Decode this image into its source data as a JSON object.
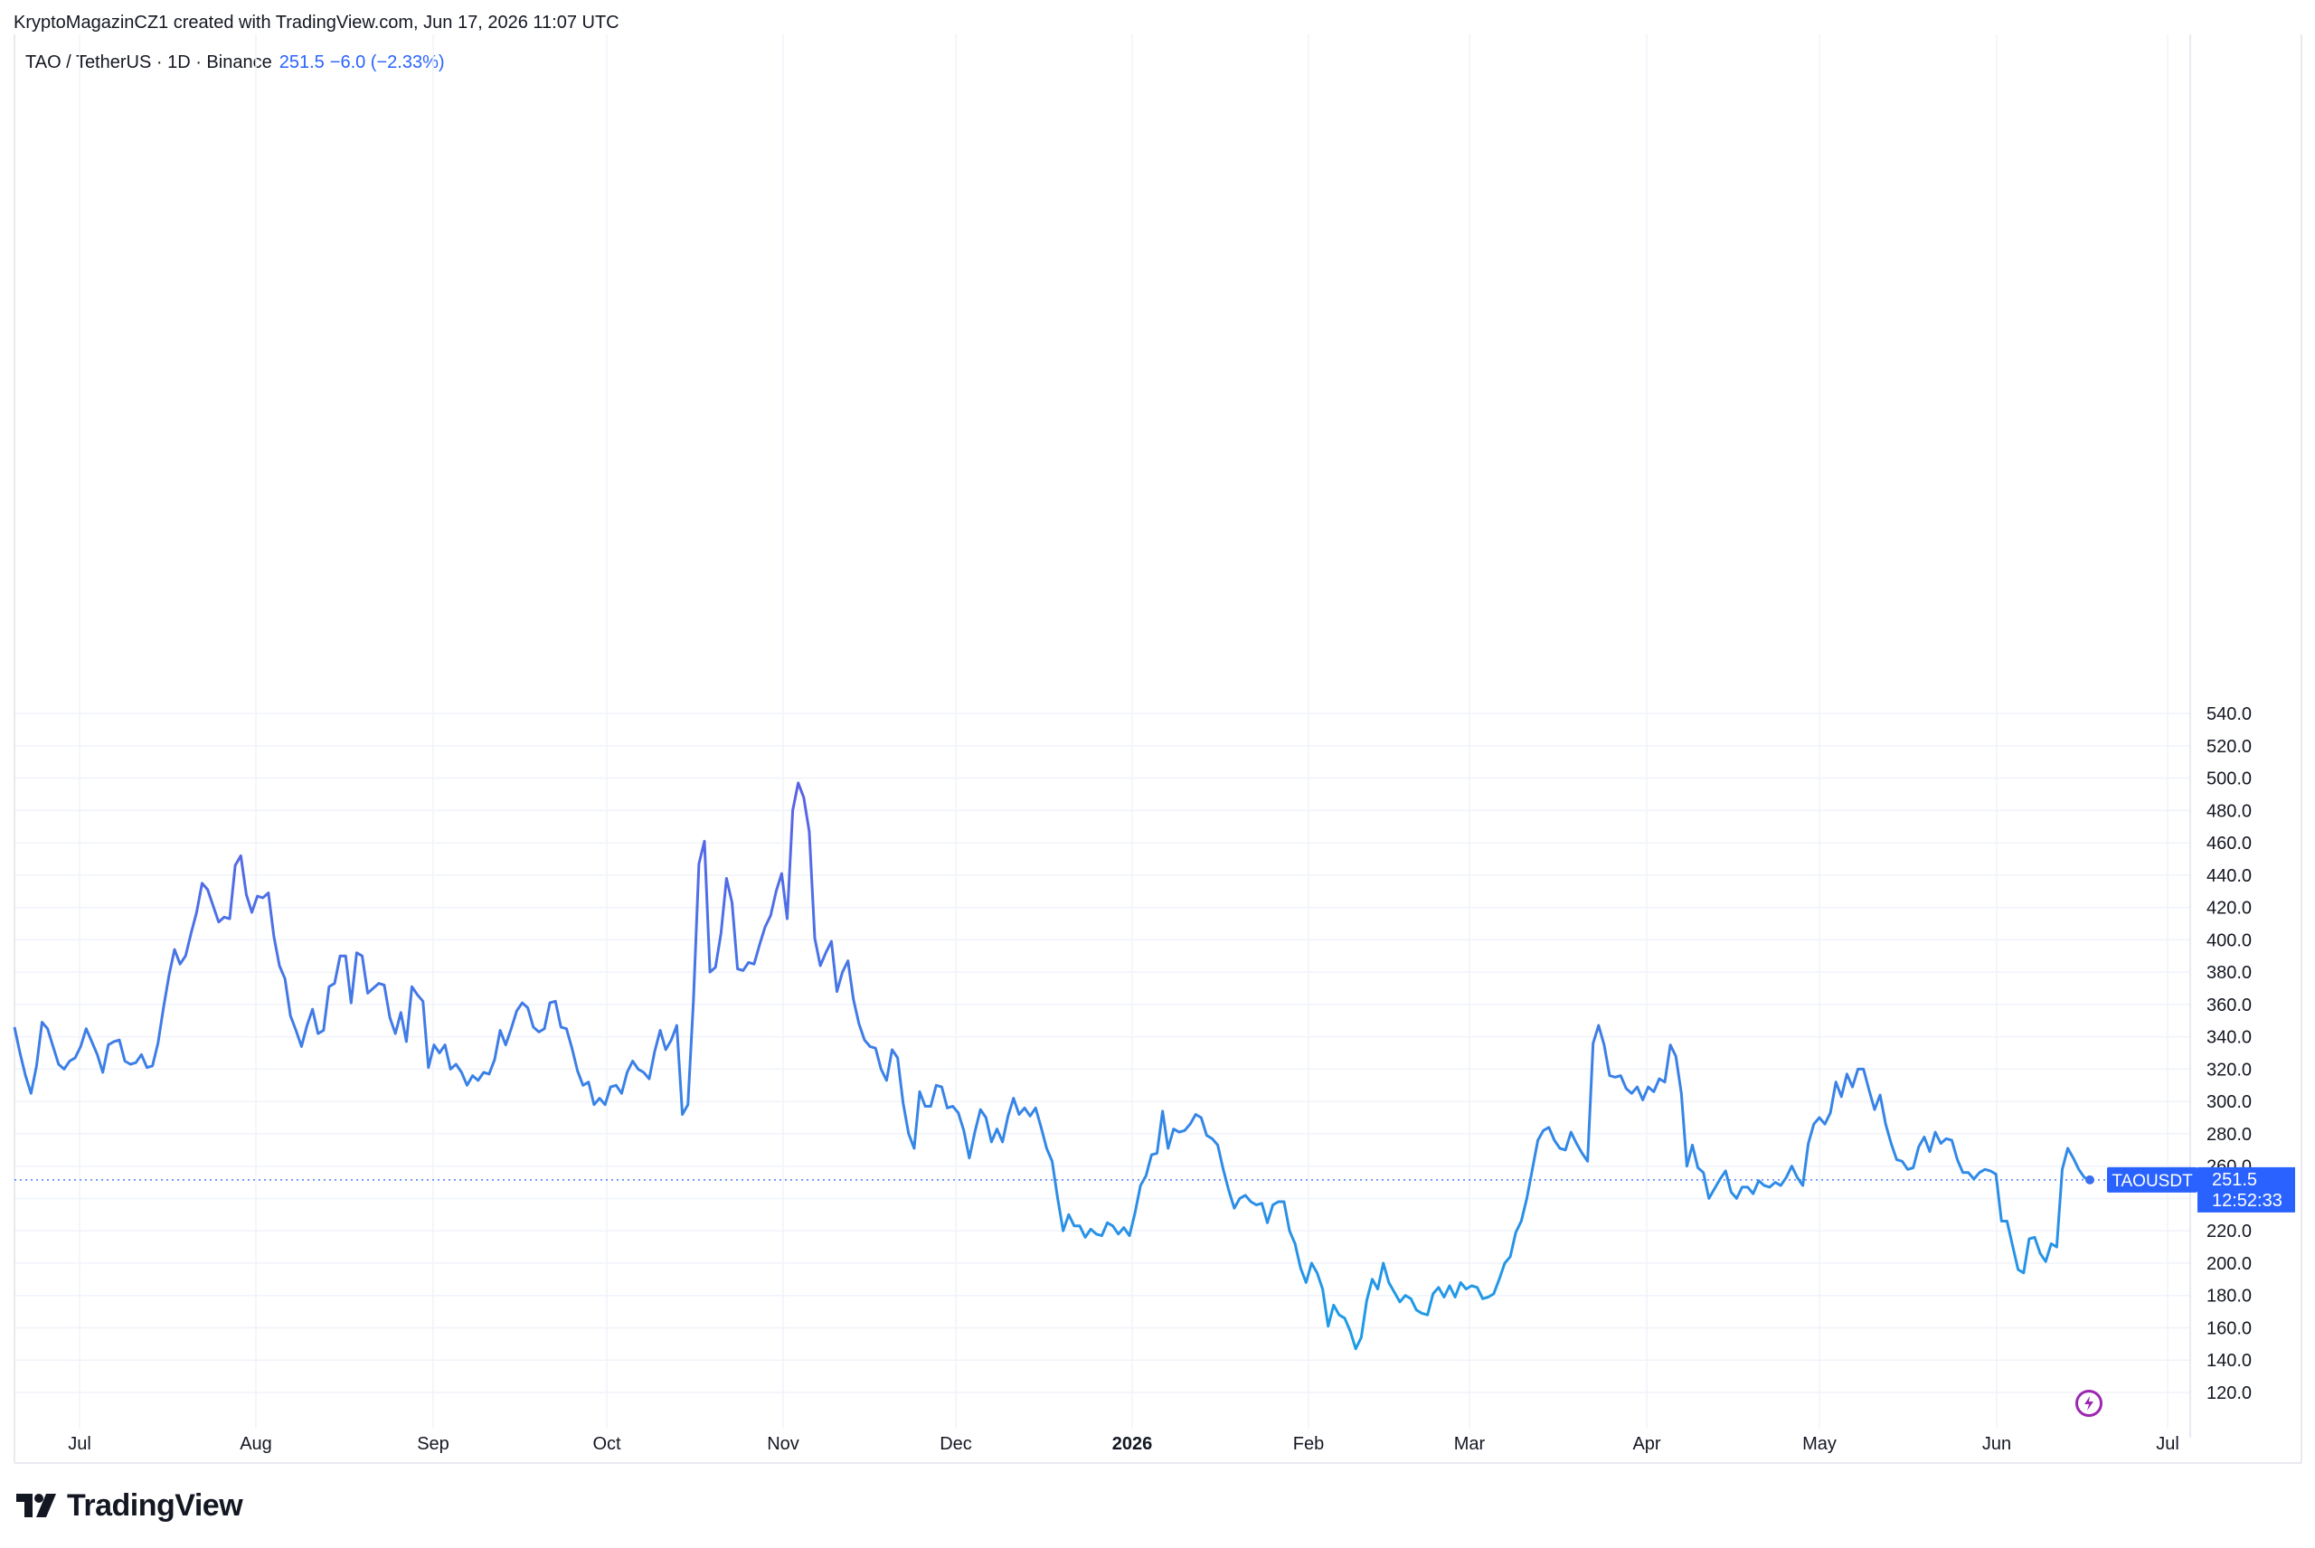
{
  "created_note": "KryptoMagazinCZ1 created with TradingView.com, Jun 17, 2026 11:07 UTC",
  "legend": {
    "symbol": "TAO / TetherUS · 1D · Binance",
    "last": "251.5",
    "change": "−6.0 (−2.33%)"
  },
  "price_label": {
    "ticker": "TAOUSDT",
    "value": "251.5",
    "countdown": "12:52:33"
  },
  "brand": "TradingView",
  "colors": {
    "line_top": "#9c27f0",
    "line_mid": "#5b63e6",
    "line_bottom": "#1e9be6",
    "label_bg": "#2962ff",
    "dotted": "#4a7df5",
    "bolt": "#9c27b0"
  },
  "icons": {
    "bolt": "lightning-bolt-icon",
    "logo": "tradingview-logo-icon"
  },
  "chart_data": {
    "type": "line",
    "title": "TAO / TetherUS · 1D · Binance",
    "ylim": [
      120,
      540
    ],
    "y_ticks": [
      540,
      520,
      500,
      480,
      460,
      440,
      420,
      400,
      380,
      360,
      340,
      320,
      300,
      280,
      260,
      240,
      220,
      200,
      180,
      160,
      140,
      120
    ],
    "x_ticks": [
      {
        "label": "Jul",
        "bold": false
      },
      {
        "label": "Aug",
        "bold": false
      },
      {
        "label": "Sep",
        "bold": false
      },
      {
        "label": "Oct",
        "bold": false
      },
      {
        "label": "Nov",
        "bold": false
      },
      {
        "label": "Dec",
        "bold": false
      },
      {
        "label": "2026",
        "bold": true
      },
      {
        "label": "Feb",
        "bold": false
      },
      {
        "label": "Mar",
        "bold": false
      },
      {
        "label": "Apr",
        "bold": false
      },
      {
        "label": "May",
        "bold": false
      },
      {
        "label": "Jun",
        "bold": false
      },
      {
        "label": "Jul",
        "bold": false
      }
    ],
    "last_value": 251.5,
    "series": [
      {
        "values": [
          346,
          330,
          316,
          305,
          322,
          349,
          345,
          334,
          323,
          320,
          325,
          327,
          334,
          345,
          337,
          329,
          318,
          335,
          337,
          338,
          325,
          323,
          324,
          329,
          321,
          322,
          336,
          358,
          378,
          394,
          385,
          390,
          404,
          417,
          435,
          431,
          421,
          411,
          414,
          413,
          446,
          452,
          428,
          417,
          427,
          426,
          429,
          402,
          384,
          376,
          353,
          344,
          334,
          347,
          357,
          342,
          344,
          371,
          373,
          390,
          390,
          361,
          392,
          390,
          367,
          370,
          373,
          372,
          352,
          342,
          355,
          337,
          371,
          366,
          362,
          321,
          335,
          330,
          335,
          320,
          323,
          318,
          310,
          316,
          313,
          318,
          317,
          326,
          344,
          335,
          345,
          356,
          361,
          358,
          346,
          343,
          345,
          361,
          362,
          346,
          345,
          333,
          319,
          310,
          312,
          298,
          302,
          298,
          309,
          310,
          305,
          318,
          325,
          320,
          318,
          314,
          331,
          344,
          332,
          338,
          347,
          292,
          298,
          362,
          447,
          461,
          380,
          383,
          404,
          438,
          423,
          382,
          381,
          386,
          385,
          397,
          408,
          415,
          430,
          441,
          413,
          480,
          497,
          488,
          467,
          401,
          384,
          392,
          399,
          368,
          380,
          387,
          363,
          348,
          338,
          334,
          333,
          320,
          313,
          332,
          327,
          299,
          280,
          271,
          306,
          297,
          297,
          310,
          309,
          296,
          297,
          293,
          282,
          265,
          281,
          295,
          290,
          275,
          283,
          275,
          291,
          302,
          292,
          296,
          291,
          296,
          284,
          271,
          263,
          240,
          220,
          230,
          223,
          223,
          216,
          221,
          218,
          217,
          225,
          223,
          218,
          222,
          217,
          231,
          248,
          254,
          267,
          268,
          294,
          271,
          283,
          281,
          282,
          286,
          292,
          290,
          279,
          277,
          273,
          258,
          245,
          234,
          240,
          242,
          238,
          236,
          237,
          225,
          236,
          238,
          238,
          220,
          212,
          197,
          188,
          200,
          194,
          184,
          161,
          174,
          168,
          166,
          158,
          147,
          154,
          177,
          190,
          184,
          200,
          188,
          182,
          176,
          180,
          178,
          171,
          169,
          168,
          181,
          185,
          179,
          186,
          179,
          188,
          184,
          186,
          185,
          178,
          179,
          181,
          190,
          200,
          204,
          219,
          226,
          240,
          258,
          276,
          282,
          284,
          276,
          271,
          270,
          281,
          274,
          268,
          263,
          336,
          347,
          335,
          316,
          315,
          316,
          308,
          305,
          309,
          301,
          309,
          306,
          314,
          312,
          335,
          328,
          305,
          260,
          273,
          259,
          256,
          240,
          246,
          252,
          257,
          244,
          240,
          247,
          247,
          243,
          251,
          248,
          247,
          250,
          248,
          253,
          260,
          253,
          248,
          274,
          286,
          290,
          286,
          293,
          312,
          303,
          317,
          309,
          320,
          320,
          307,
          295,
          304,
          286,
          274,
          264,
          263,
          258,
          259,
          272,
          278,
          269,
          281,
          274,
          277,
          276,
          264,
          256,
          256,
          252,
          256,
          258,
          257,
          255,
          226,
          226,
          211,
          196,
          194,
          215,
          216,
          206,
          201,
          212,
          210,
          258,
          271,
          265,
          258,
          253,
          251.5
        ]
      }
    ]
  }
}
